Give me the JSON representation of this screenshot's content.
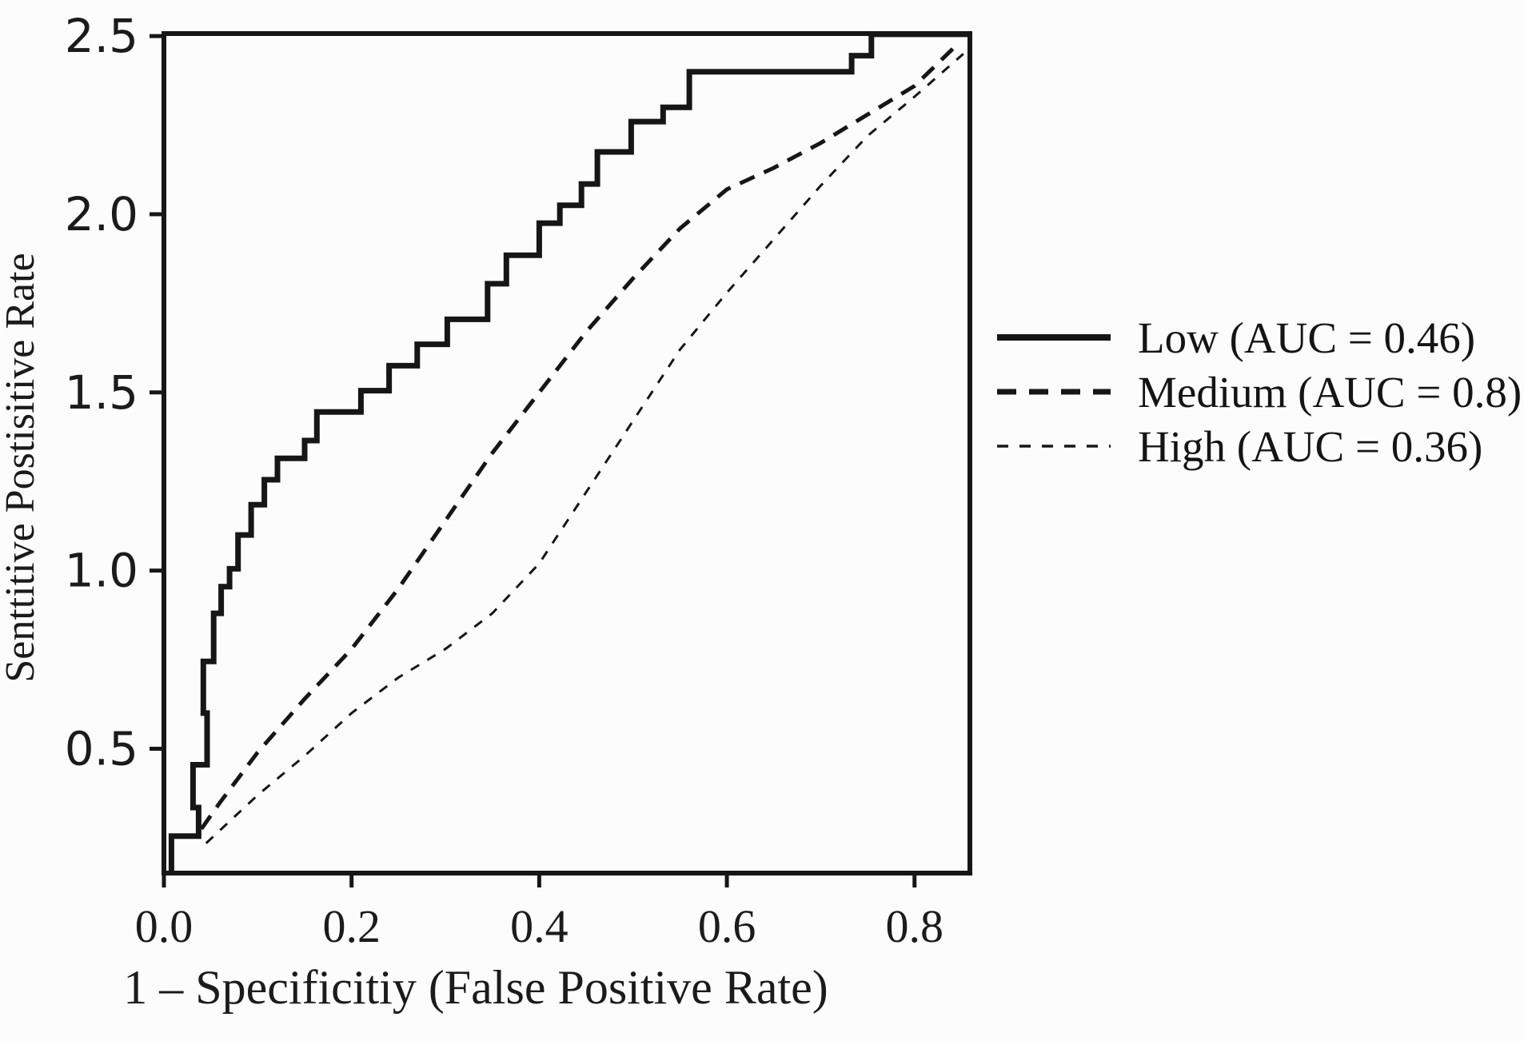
{
  "figure": {
    "background": "#fcfcfc",
    "ink_color": "#161616"
  },
  "chart_data": {
    "type": "line",
    "subtype": "roc-curves",
    "title": "",
    "xlabel": "1 – Specificitiy (False Positive Rate)",
    "ylabel": "Senttitive Postisitive Rate",
    "xlim": [
      0,
      0.859
    ],
    "ylim": [
      0.151,
      2.507
    ],
    "grid": false,
    "legend_position": "outside-right",
    "x_ticks": [
      {
        "v": 0.0,
        "label": "0.0"
      },
      {
        "v": 0.2,
        "label": "0.2"
      },
      {
        "v": 0.4,
        "label": "0.4"
      },
      {
        "v": 0.6,
        "label": "0.6"
      },
      {
        "v": 0.8,
        "label": "0.8"
      }
    ],
    "y_ticks": [
      {
        "v": 0.5,
        "label": "0.5"
      },
      {
        "v": 1.0,
        "label": "1.0"
      },
      {
        "v": 1.5,
        "label": "1.5"
      },
      {
        "v": 2.0,
        "label": "2.0"
      },
      {
        "v": 2.5,
        "label": "2.5"
      }
    ],
    "series": [
      {
        "name": "Low",
        "label": "Low (AUC = 0.46)",
        "auc": "0.46",
        "style": "solid",
        "dash": "",
        "color": "#161616",
        "width": 7,
        "points": [
          [
            0.008,
            0.151
          ],
          [
            0.008,
            0.255
          ],
          [
            0.037,
            0.255
          ],
          [
            0.037,
            0.335
          ],
          [
            0.031,
            0.335
          ],
          [
            0.031,
            0.455
          ],
          [
            0.046,
            0.455
          ],
          [
            0.046,
            0.6
          ],
          [
            0.042,
            0.6
          ],
          [
            0.042,
            0.745
          ],
          [
            0.053,
            0.745
          ],
          [
            0.053,
            0.88
          ],
          [
            0.061,
            0.88
          ],
          [
            0.061,
            0.955
          ],
          [
            0.07,
            0.955
          ],
          [
            0.07,
            1.005
          ],
          [
            0.079,
            1.005
          ],
          [
            0.079,
            1.1
          ],
          [
            0.093,
            1.1
          ],
          [
            0.093,
            1.185
          ],
          [
            0.107,
            1.185
          ],
          [
            0.107,
            1.255
          ],
          [
            0.121,
            1.255
          ],
          [
            0.121,
            1.315
          ],
          [
            0.15,
            1.315
          ],
          [
            0.15,
            1.365
          ],
          [
            0.163,
            1.365
          ],
          [
            0.163,
            1.445
          ],
          [
            0.21,
            1.445
          ],
          [
            0.21,
            1.505
          ],
          [
            0.24,
            1.505
          ],
          [
            0.24,
            1.575
          ],
          [
            0.27,
            1.575
          ],
          [
            0.27,
            1.635
          ],
          [
            0.302,
            1.635
          ],
          [
            0.302,
            1.705
          ],
          [
            0.345,
            1.705
          ],
          [
            0.345,
            1.805
          ],
          [
            0.365,
            1.805
          ],
          [
            0.365,
            1.885
          ],
          [
            0.4,
            1.885
          ],
          [
            0.4,
            1.975
          ],
          [
            0.422,
            1.975
          ],
          [
            0.422,
            2.025
          ],
          [
            0.445,
            2.025
          ],
          [
            0.445,
            2.085
          ],
          [
            0.462,
            2.085
          ],
          [
            0.462,
            2.175
          ],
          [
            0.498,
            2.175
          ],
          [
            0.498,
            2.26
          ],
          [
            0.532,
            2.26
          ],
          [
            0.532,
            2.3
          ],
          [
            0.56,
            2.3
          ],
          [
            0.56,
            2.4
          ],
          [
            0.733,
            2.4
          ],
          [
            0.733,
            2.445
          ],
          [
            0.754,
            2.445
          ],
          [
            0.754,
            2.505
          ],
          [
            0.859,
            2.505
          ]
        ]
      },
      {
        "name": "Medium",
        "label": "Medium (AUC = 0.8)",
        "auc": "0.8",
        "style": "dashed",
        "dash": "20 13",
        "color": "#161616",
        "width": 5,
        "points": [
          [
            0.04,
            0.275
          ],
          [
            0.06,
            0.35
          ],
          [
            0.1,
            0.49
          ],
          [
            0.15,
            0.64
          ],
          [
            0.2,
            0.78
          ],
          [
            0.25,
            0.95
          ],
          [
            0.3,
            1.14
          ],
          [
            0.35,
            1.33
          ],
          [
            0.4,
            1.5
          ],
          [
            0.45,
            1.67
          ],
          [
            0.5,
            1.82
          ],
          [
            0.55,
            1.96
          ],
          [
            0.6,
            2.07
          ],
          [
            0.65,
            2.13
          ],
          [
            0.7,
            2.2
          ],
          [
            0.75,
            2.28
          ],
          [
            0.8,
            2.36
          ],
          [
            0.843,
            2.47
          ]
        ]
      },
      {
        "name": "High",
        "label": "High (AUC = 0.36)",
        "auc": "0.36",
        "style": "dashed-fine",
        "dash": "12 12",
        "color": "#161616",
        "width": 3,
        "points": [
          [
            0.045,
            0.235
          ],
          [
            0.1,
            0.37
          ],
          [
            0.15,
            0.48
          ],
          [
            0.2,
            0.6
          ],
          [
            0.25,
            0.7
          ],
          [
            0.3,
            0.78
          ],
          [
            0.35,
            0.88
          ],
          [
            0.4,
            1.02
          ],
          [
            0.45,
            1.22
          ],
          [
            0.5,
            1.42
          ],
          [
            0.55,
            1.62
          ],
          [
            0.6,
            1.78
          ],
          [
            0.65,
            1.93
          ],
          [
            0.7,
            2.08
          ],
          [
            0.75,
            2.22
          ],
          [
            0.8,
            2.33
          ],
          [
            0.852,
            2.45
          ]
        ]
      }
    ]
  }
}
